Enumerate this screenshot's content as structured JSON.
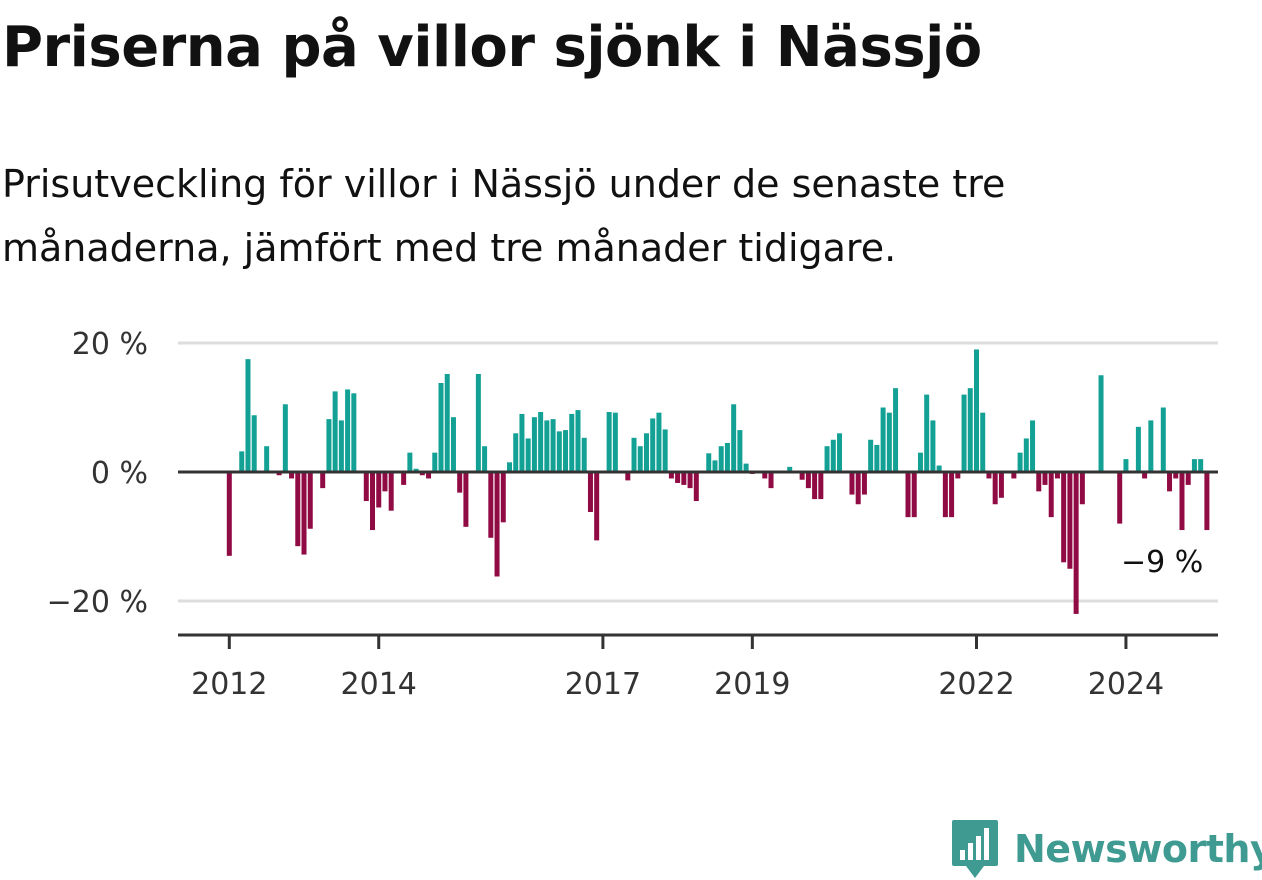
{
  "title": "Priserna på villor sjönk i Nässjö",
  "subtitle": "Prisutveckling för villor i Nässjö under de senaste tre månaderna, jämfört med tre månader tidigare.",
  "logo": {
    "text": "Newsworthy",
    "icon": "newsworthy-bar-chart-pin-icon"
  },
  "colors": {
    "positive": "#14a195",
    "negative": "#900a43",
    "axis": "#333333",
    "grid": "#dddddd",
    "logo": "#3f9b92"
  },
  "chart_data": {
    "type": "bar",
    "title": "",
    "xlabel": "",
    "ylabel": "",
    "ylim": [
      -25,
      21
    ],
    "yticks": [
      20,
      0,
      -20
    ],
    "ytick_labels": [
      "20 %",
      "0 %",
      "−20 %"
    ],
    "xticks": [
      2012,
      2014,
      2017,
      2019,
      2022,
      2024
    ],
    "xtick_labels": [
      "2012",
      "2014",
      "2017",
      "2019",
      "2022",
      "2024"
    ],
    "grid": true,
    "legend": "none",
    "frequency": "monthly",
    "start": "2012-01",
    "annotation": {
      "text": "−9 %",
      "at": "2024-07"
    },
    "values": [
      -13.0,
      0,
      3.2,
      17.5,
      8.8,
      0,
      4.0,
      0,
      -0.5,
      10.5,
      -1.0,
      -11.5,
      -12.8,
      -8.8,
      0,
      -2.5,
      8.2,
      12.5,
      8.0,
      12.8,
      12.2,
      0,
      -4.5,
      -9.0,
      -5.5,
      -3.0,
      -6.0,
      0,
      -2.0,
      3.0,
      0.5,
      -0.5,
      -1.0,
      3.0,
      13.8,
      15.2,
      8.5,
      -3.2,
      -8.5,
      0,
      15.2,
      4.0,
      -10.2,
      -16.2,
      -7.8,
      1.5,
      6.0,
      9.0,
      5.2,
      8.5,
      9.3,
      8.0,
      8.2,
      6.3,
      6.5,
      9.0,
      9.6,
      5.3,
      -6.2,
      -10.6,
      0.2,
      9.3,
      9.2,
      0,
      -1.3,
      5.3,
      4.0,
      6.0,
      8.3,
      9.2,
      6.6,
      -1.0,
      -1.7,
      -2.0,
      -2.5,
      -4.5,
      0,
      2.9,
      1.8,
      4.0,
      4.5,
      10.5,
      6.5,
      1.3,
      -0.3,
      0,
      -1.0,
      -2.5,
      0,
      0,
      0.8,
      0,
      -1.2,
      -2.5,
      -4.2,
      -4.2,
      4.0,
      5.0,
      6.0,
      0,
      -3.5,
      -5.0,
      -3.5,
      5.0,
      4.2,
      10.0,
      9.2,
      13.0,
      0,
      -7.0,
      -7.0,
      3.0,
      12.0,
      8.0,
      1.0,
      -7.0,
      -7.0,
      -1.0,
      12.0,
      13.0,
      19.0,
      9.2,
      -1.0,
      -5.0,
      -4.0,
      0,
      -1.0,
      3.0,
      5.2,
      8.0,
      -3.0,
      -2.0,
      -7.0,
      -1.0,
      -14.0,
      -15.0,
      -22.0,
      -5.0,
      0,
      0,
      15.0,
      0,
      0,
      -8.0,
      2.0,
      0,
      7.0,
      -1.0,
      8.0,
      0,
      10.0,
      -3.0,
      -1.0,
      -9.0,
      -2.0,
      2.0,
      2.0,
      -9.0
    ]
  }
}
